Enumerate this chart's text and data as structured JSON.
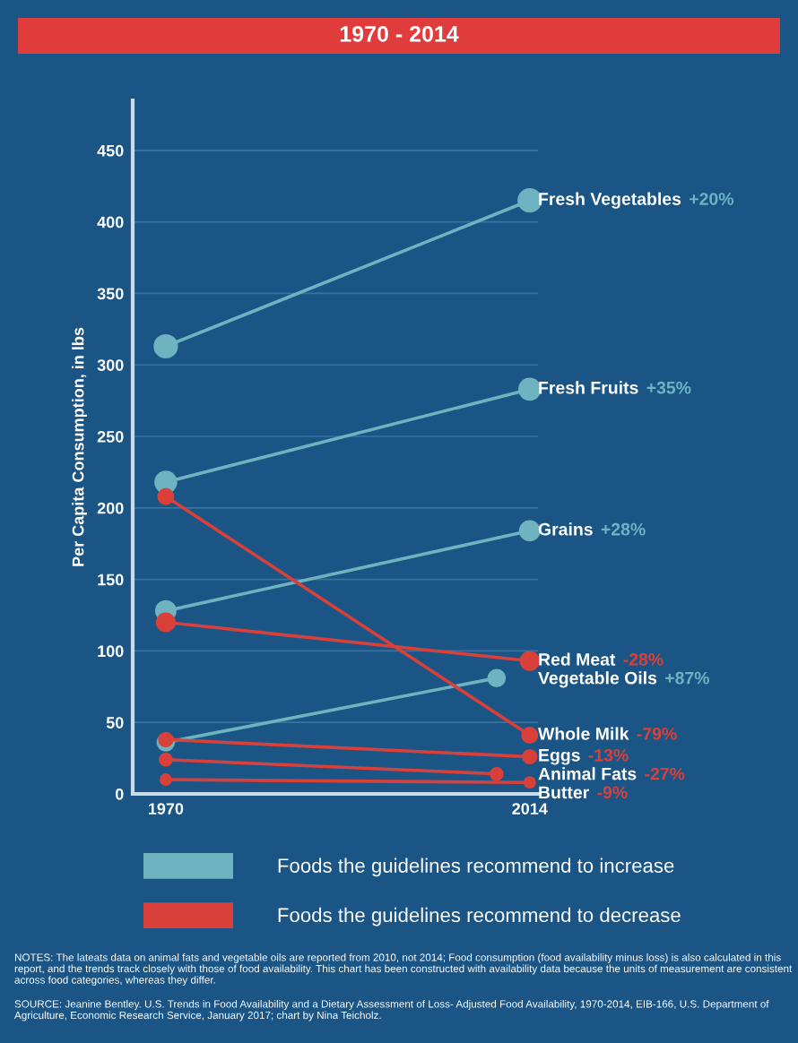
{
  "chart_data": {
    "type": "line",
    "title": "1970 - 2014",
    "ylabel": "Per Capita Consumption, in lbs",
    "xlim": [
      1966,
      2015
    ],
    "xticks": [
      1970,
      2014
    ],
    "ylim": [
      0,
      485
    ],
    "yticks": [
      0,
      50,
      100,
      150,
      200,
      250,
      300,
      350,
      400,
      450
    ],
    "grid": "y",
    "marker": "circle",
    "line_style": "solid",
    "series": [
      {
        "name": "Fresh Vegetables",
        "color": "#6fb3c0",
        "x": [
          1970,
          2014
        ],
        "values": [
          313,
          415
        ]
      },
      {
        "name": "Fresh Fruits",
        "color": "#6fb3c0",
        "x": [
          1970,
          2014
        ],
        "values": [
          218,
          283
        ]
      },
      {
        "name": "Grains",
        "color": "#6fb3c0",
        "x": [
          1970,
          2014
        ],
        "values": [
          128,
          184
        ]
      },
      {
        "name": "Red Meat",
        "color": "#d9403a",
        "x": [
          1970,
          2014
        ],
        "values": [
          120,
          93
        ]
      },
      {
        "name": "Vegetable Oils",
        "color": "#6fb3c0",
        "x": [
          1970,
          2010
        ],
        "values": [
          36,
          81
        ]
      },
      {
        "name": "Whole Milk",
        "color": "#d9403a",
        "x": [
          1970,
          2014
        ],
        "values": [
          208,
          41
        ]
      },
      {
        "name": "Eggs",
        "color": "#d9403a",
        "x": [
          1970,
          2014
        ],
        "values": [
          38,
          26
        ]
      },
      {
        "name": "Animal Fats",
        "color": "#d9403a",
        "x": [
          1970,
          2010
        ],
        "values": [
          24,
          14
        ]
      },
      {
        "name": "Butter",
        "color": "#d9403a",
        "x": [
          1970,
          2014
        ],
        "values": [
          10,
          8
        ]
      }
    ],
    "annotations": [
      "+20%",
      "+35%",
      "+28%",
      "-28%",
      "+87%",
      "-79%",
      "-13%",
      "-27%",
      "-9%",
      "Foods the guidelines recommend to increase",
      "Foods the guidelines recommend to decrease",
      "NOTES: The lateats data on animal fats and vegetable oils are reported from 2010, not 2014; Food consumption (food availability minus loss) is also calculated in this report, and the trends track closely with those of food availability. This chart has been constructed with availability data because the units of measurement are consistent across food categories, whereas they differ.",
      "SOURCE: Jeanine Bentley. U.S. Trends in Food Availability and a Dietary Assessment of Loss- Adjusted Food Availability, 1970-2014, EIB-166, U.S. Department of Agriculture, Economic Research Service, January 2017; chart by Nina Teicholz."
    ]
  }
}
